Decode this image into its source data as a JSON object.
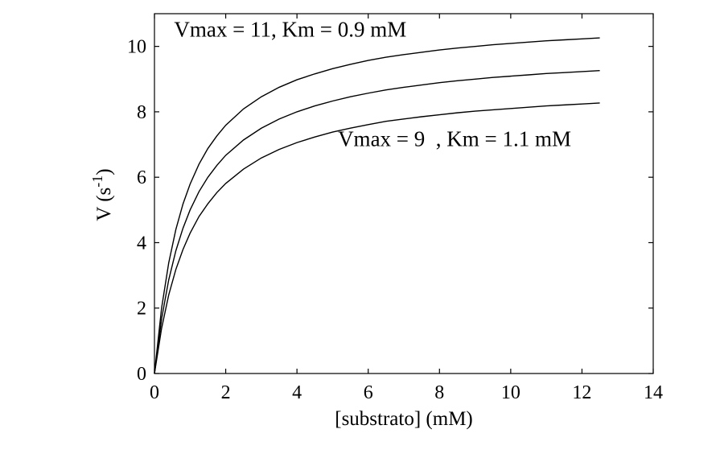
{
  "chart_data": {
    "type": "line",
    "xlabel": "[substrato] (mM)",
    "ylabel": {
      "base": "V (s",
      "sup": "-1",
      "close": ")"
    },
    "xlim": [
      0,
      14
    ],
    "ylim": [
      0,
      11
    ],
    "xticks": [
      "0",
      "2",
      "4",
      "6",
      "8",
      "10",
      "12",
      "14"
    ],
    "yticks": [
      "0",
      "2",
      "4",
      "6",
      "8",
      "10"
    ],
    "grid": false,
    "x": [
      0,
      0.2,
      0.4,
      0.6,
      0.8,
      1,
      1.25,
      1.5,
      1.75,
      2,
      2.5,
      3,
      3.5,
      4,
      4.5,
      5,
      5.5,
      6,
      6.5,
      7,
      7.5,
      8,
      8.5,
      9,
      9.5,
      10,
      10.5,
      11,
      11.5,
      12,
      12.5
    ],
    "series": [
      {
        "vmax": 11,
        "km": 0.9,
        "values": [
          0,
          2.0,
          3.38,
          4.4,
          5.18,
          5.79,
          6.4,
          6.88,
          7.26,
          7.59,
          8.09,
          8.46,
          8.75,
          8.98,
          9.16,
          9.32,
          9.45,
          9.57,
          9.67,
          9.75,
          9.82,
          9.89,
          9.95,
          10.0,
          10.05,
          10.09,
          10.13,
          10.17,
          10.2,
          10.23,
          10.26
        ]
      },
      {
        "vmax": 10,
        "km": 1.0,
        "values": [
          0,
          1.67,
          2.86,
          3.75,
          4.44,
          5.0,
          5.56,
          6.0,
          6.36,
          6.67,
          7.14,
          7.5,
          7.78,
          8.0,
          8.18,
          8.33,
          8.46,
          8.57,
          8.67,
          8.75,
          8.82,
          8.89,
          8.95,
          9.0,
          9.05,
          9.09,
          9.13,
          9.17,
          9.2,
          9.23,
          9.26
        ]
      },
      {
        "vmax": 9,
        "km": 1.1,
        "values": [
          0,
          1.38,
          2.4,
          3.18,
          3.79,
          4.29,
          4.8,
          5.19,
          5.53,
          5.81,
          6.25,
          6.59,
          6.85,
          7.06,
          7.23,
          7.38,
          7.5,
          7.61,
          7.71,
          7.78,
          7.85,
          7.91,
          7.97,
          8.02,
          8.06,
          8.1,
          8.14,
          8.18,
          8.21,
          8.24,
          8.27
        ]
      }
    ],
    "annotations": [
      {
        "text": "Vmax = 11, Km = 0.9 mM",
        "x": 0.55,
        "y": 10.3
      },
      {
        "text": "Vmax = 9  , Km = 1.1 mM",
        "x": 5.15,
        "y": 6.95
      }
    ]
  }
}
